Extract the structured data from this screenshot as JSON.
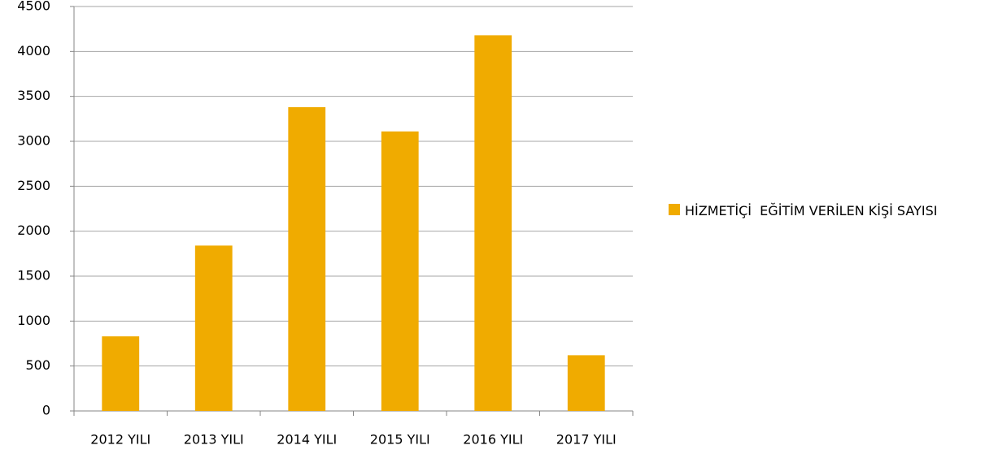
{
  "chart_data": {
    "type": "bar",
    "categories": [
      "2012 YILI",
      "2013 YILI",
      "2014 YILI",
      "2015 YILI",
      "2016 YILI",
      "2017 YILI"
    ],
    "series": [
      {
        "name": "HİZMETİÇİ  EĞİTİM VERİLEN KİŞİ SAYISI",
        "color": "#f0ab00",
        "values": [
          830,
          1840,
          3380,
          3110,
          4180,
          620
        ]
      }
    ],
    "ylim": [
      0,
      4500
    ],
    "yticks": [
      0,
      500,
      1000,
      1500,
      2000,
      2500,
      3000,
      3500,
      4000,
      4500
    ],
    "grid": true,
    "legend": "right"
  }
}
